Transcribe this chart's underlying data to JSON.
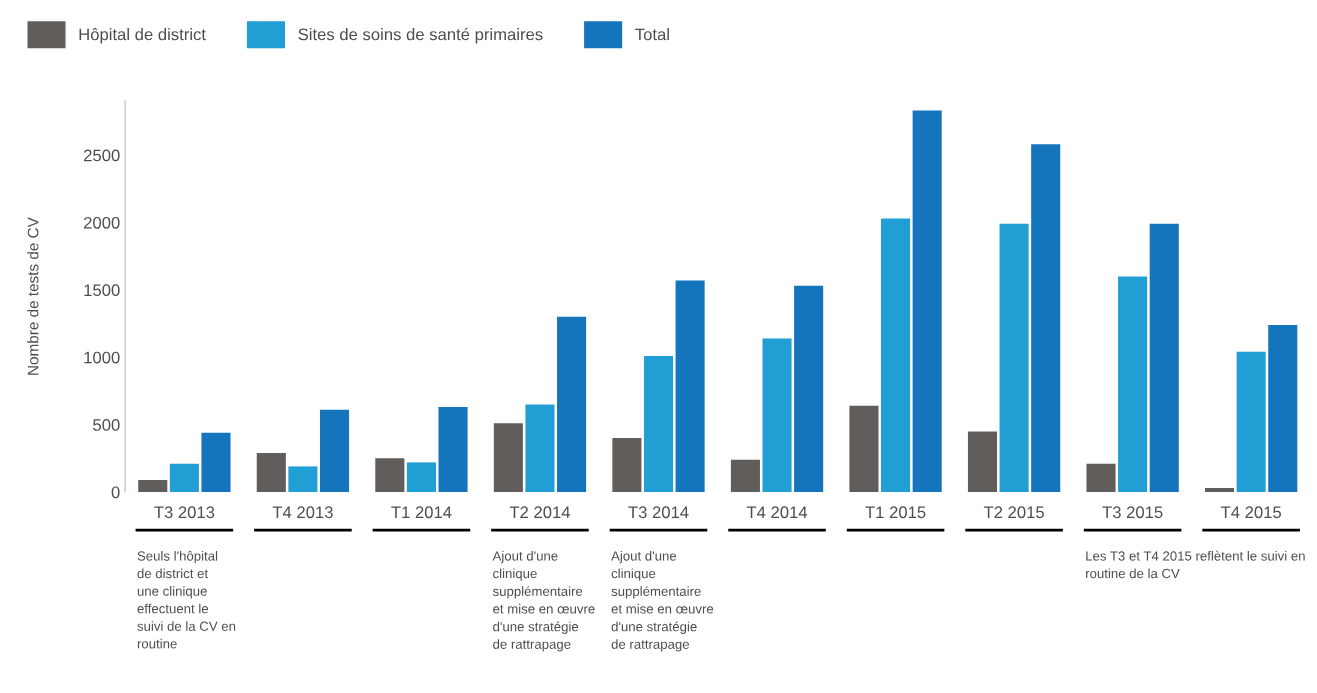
{
  "chart_data": {
    "type": "bar",
    "ylabel": "Nombre de tests de CV",
    "categories": [
      "T3 2013",
      "T4 2013",
      "T1 2014",
      "T2 2014",
      "T3 2014",
      "T4 2014",
      "T1 2015",
      "T2 2015",
      "T3 2015",
      "T4 2015"
    ],
    "series": [
      {
        "name": "Hôpital de district",
        "color": "#615d5b",
        "values": [
          90,
          290,
          250,
          510,
          400,
          240,
          640,
          450,
          210,
          30
        ]
      },
      {
        "name": "Sites de soins de santé primaires",
        "color": "#219fd5",
        "values": [
          210,
          190,
          220,
          650,
          1010,
          1140,
          2030,
          1990,
          1600,
          1040
        ]
      },
      {
        "name": "Total",
        "color": "#1475bd",
        "values": [
          440,
          610,
          630,
          1300,
          1570,
          1530,
          2830,
          2580,
          1990,
          1240
        ]
      }
    ],
    "ylim": [
      0,
      2900
    ],
    "yticks": [
      0,
      500,
      1000,
      1500,
      2000,
      2500
    ],
    "grid": false,
    "legend": "top left",
    "annotations": [
      "Seuls l'hôpital\nde district et\nune clinique\neffectuent le\nsuivi de la CV en\nroutine",
      "Ajout d'une\nclinique\nsupplémentaire\net mise en œuvre\nd'une stratégie\nde rattrapage",
      "Ajout d'une\nclinique\nsupplémentaire\net mise en œuvre\nd'une stratégie\nde rattrapage",
      "Les T3 et T4 2015 reflètent le suivi en\nroutine de la CV"
    ]
  }
}
